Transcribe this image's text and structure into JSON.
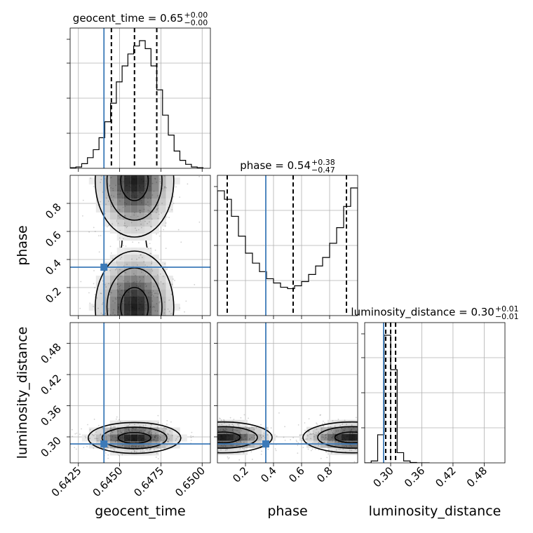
{
  "chart_data": {
    "type": "corner",
    "parameters": [
      {
        "name": "geocent_time",
        "label": "geocent_time",
        "range": [
          0.642,
          0.6505
        ],
        "ticks": [
          0.6425,
          0.645,
          0.6475,
          0.65
        ],
        "tick_labels": [
          "0.6425",
          "0.6450",
          "0.6475",
          "0.6500"
        ],
        "truth": 0.64405
      },
      {
        "name": "phase",
        "label": "phase",
        "range": [
          0.0,
          1.0
        ],
        "ticks": [
          0.2,
          0.4,
          0.6,
          0.8
        ],
        "tick_labels": [
          "0.2",
          "0.4",
          "0.6",
          "0.8"
        ],
        "truth": 0.345
      },
      {
        "name": "luminosity_distance",
        "label": "luminosity_distance",
        "range": [
          0.25,
          0.52
        ],
        "ticks": [
          0.3,
          0.36,
          0.42,
          0.48
        ],
        "tick_labels": [
          "0.30",
          "0.36",
          "0.42",
          "0.48"
        ],
        "truth": 0.2865
      }
    ],
    "titles": [
      {
        "text": "geocent_time = 0.65",
        "sup": "+0.00",
        "sub": "−0.00"
      },
      {
        "text": "phase = 0.54",
        "sup": "+0.38",
        "sub": "−0.47"
      },
      {
        "text": "luminosity_distance = 0.30",
        "sup": "+0.01",
        "sub": "−0.01"
      }
    ],
    "histograms": [
      {
        "param": "geocent_time",
        "bin_edges": [
          0.642,
          0.64235,
          0.6427,
          0.64305,
          0.6434,
          0.64375,
          0.6441,
          0.64445,
          0.6448,
          0.64515,
          0.6455,
          0.64585,
          0.6462,
          0.64655,
          0.6469,
          0.64725,
          0.6476,
          0.64795,
          0.6483,
          0.64865,
          0.649,
          0.64935,
          0.6497,
          0.65005
        ],
        "counts": [
          0.5,
          1.0,
          3.5,
          8.0,
          14.0,
          23.0,
          35.0,
          49.0,
          65.0,
          77.0,
          86.0,
          92.0,
          96.0,
          90.0,
          77.0,
          59.0,
          40.0,
          25.0,
          13.0,
          6.0,
          3.0,
          1.0,
          0.5
        ],
        "quantiles": [
          0.6445,
          0.6459,
          0.64725
        ]
      },
      {
        "param": "phase",
        "bin_edges": [
          0.0,
          0.05,
          0.1,
          0.15,
          0.2,
          0.25,
          0.3,
          0.35,
          0.4,
          0.45,
          0.5,
          0.55,
          0.6,
          0.65,
          0.7,
          0.75,
          0.8,
          0.85,
          0.9,
          0.95,
          1.0
        ],
        "counts": [
          88,
          82,
          70,
          56,
          44,
          37,
          31,
          26,
          23,
          20,
          19,
          21,
          24,
          29,
          35,
          41,
          51,
          62,
          77,
          90
        ],
        "quantiles": [
          0.07,
          0.54,
          0.92
        ]
      },
      {
        "param": "luminosity_distance",
        "bin_edges": [
          0.25,
          0.2625,
          0.275,
          0.2875,
          0.3,
          0.3125,
          0.325,
          0.3375,
          0.35,
          0.3625,
          0.375
        ],
        "counts": [
          0,
          1.5,
          22,
          100,
          73,
          8,
          1.5,
          0.3,
          0,
          0
        ],
        "quantiles": [
          0.2905,
          0.3,
          0.3095
        ]
      }
    ],
    "contour_pairs": [
      {
        "x": "geocent_time",
        "y": "phase",
        "modes": [
          {
            "x": 0.6459,
            "y": 0.06
          },
          {
            "x": 0.6459,
            "y": 0.96
          }
        ]
      },
      {
        "x": "geocent_time",
        "y": "luminosity_distance",
        "modes": [
          {
            "x": 0.6459,
            "y": 0.298
          }
        ]
      },
      {
        "x": "phase",
        "y": "luminosity_distance",
        "modes": [
          {
            "x": 0.04,
            "y": 0.299
          },
          {
            "x": 0.96,
            "y": 0.299
          }
        ]
      }
    ],
    "grid": true
  }
}
